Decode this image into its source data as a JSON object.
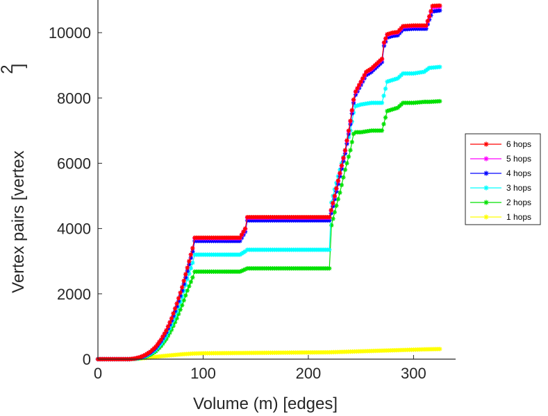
{
  "chart_data": {
    "type": "line",
    "title": "",
    "xlabel": "Volume (m) [edges]",
    "ylabel": "Vertex pairs [vertex",
    "ylabel_superscript": "2",
    "ylabel_tail": "]",
    "xlim": [
      0,
      340
    ],
    "ylim": [
      0,
      11000
    ],
    "xticks": [
      0,
      100,
      200,
      300
    ],
    "yticks": [
      0,
      2000,
      4000,
      6000,
      8000,
      10000
    ],
    "grid": false,
    "legend_position": "right",
    "marker": "asterisk",
    "series": [
      {
        "name": "6 hops",
        "color": "#ff0000",
        "points": [
          [
            0,
            0
          ],
          [
            30,
            0
          ],
          [
            35,
            20
          ],
          [
            40,
            60
          ],
          [
            45,
            130
          ],
          [
            50,
            230
          ],
          [
            55,
            380
          ],
          [
            60,
            600
          ],
          [
            65,
            880
          ],
          [
            70,
            1250
          ],
          [
            75,
            1700
          ],
          [
            80,
            2200
          ],
          [
            85,
            2800
          ],
          [
            90,
            3400
          ],
          [
            92,
            3720
          ],
          [
            100,
            3720
          ],
          [
            120,
            3720
          ],
          [
            135,
            3720
          ],
          [
            140,
            4000
          ],
          [
            142,
            4350
          ],
          [
            160,
            4350
          ],
          [
            180,
            4350
          ],
          [
            200,
            4350
          ],
          [
            220,
            4350
          ],
          [
            225,
            5000
          ],
          [
            230,
            5700
          ],
          [
            235,
            6400
          ],
          [
            240,
            7300
          ],
          [
            243,
            7950
          ],
          [
            245,
            8200
          ],
          [
            250,
            8500
          ],
          [
            255,
            8800
          ],
          [
            260,
            8900
          ],
          [
            265,
            9050
          ],
          [
            270,
            9200
          ],
          [
            272,
            9700
          ],
          [
            275,
            9950
          ],
          [
            280,
            10000
          ],
          [
            285,
            10020
          ],
          [
            290,
            10200
          ],
          [
            300,
            10220
          ],
          [
            312,
            10220
          ],
          [
            315,
            10500
          ],
          [
            318,
            10820
          ],
          [
            325,
            10830
          ]
        ]
      },
      {
        "name": "5 hops",
        "color": "#ff00ff",
        "points": [
          [
            0,
            0
          ],
          [
            30,
            0
          ],
          [
            35,
            20
          ],
          [
            40,
            60
          ],
          [
            45,
            130
          ],
          [
            50,
            230
          ],
          [
            55,
            380
          ],
          [
            60,
            600
          ],
          [
            65,
            880
          ],
          [
            70,
            1250
          ],
          [
            75,
            1700
          ],
          [
            80,
            2200
          ],
          [
            85,
            2800
          ],
          [
            90,
            3400
          ],
          [
            92,
            3700
          ],
          [
            100,
            3700
          ],
          [
            120,
            3700
          ],
          [
            135,
            3700
          ],
          [
            140,
            3980
          ],
          [
            142,
            4330
          ],
          [
            160,
            4330
          ],
          [
            180,
            4330
          ],
          [
            200,
            4330
          ],
          [
            220,
            4330
          ],
          [
            225,
            4980
          ],
          [
            230,
            5680
          ],
          [
            235,
            6380
          ],
          [
            240,
            7280
          ],
          [
            243,
            7930
          ],
          [
            245,
            8180
          ],
          [
            250,
            8480
          ],
          [
            255,
            8780
          ],
          [
            260,
            8880
          ],
          [
            265,
            9030
          ],
          [
            270,
            9180
          ],
          [
            272,
            9680
          ],
          [
            275,
            9930
          ],
          [
            280,
            9980
          ],
          [
            285,
            10000
          ],
          [
            290,
            10180
          ],
          [
            300,
            10200
          ],
          [
            312,
            10200
          ],
          [
            315,
            10480
          ],
          [
            318,
            10780
          ],
          [
            325,
            10790
          ]
        ]
      },
      {
        "name": "4 hops",
        "color": "#0000ff",
        "points": [
          [
            0,
            0
          ],
          [
            30,
            0
          ],
          [
            35,
            15
          ],
          [
            40,
            50
          ],
          [
            45,
            110
          ],
          [
            50,
            200
          ],
          [
            55,
            340
          ],
          [
            60,
            550
          ],
          [
            65,
            820
          ],
          [
            70,
            1180
          ],
          [
            75,
            1620
          ],
          [
            80,
            2100
          ],
          [
            85,
            2700
          ],
          [
            90,
            3300
          ],
          [
            92,
            3620
          ],
          [
            100,
            3620
          ],
          [
            120,
            3620
          ],
          [
            135,
            3620
          ],
          [
            140,
            3900
          ],
          [
            142,
            4250
          ],
          [
            160,
            4250
          ],
          [
            180,
            4250
          ],
          [
            200,
            4250
          ],
          [
            220,
            4250
          ],
          [
            225,
            4900
          ],
          [
            230,
            5600
          ],
          [
            235,
            6300
          ],
          [
            240,
            7200
          ],
          [
            243,
            7850
          ],
          [
            245,
            8100
          ],
          [
            250,
            8400
          ],
          [
            255,
            8700
          ],
          [
            260,
            8800
          ],
          [
            265,
            8950
          ],
          [
            270,
            9100
          ],
          [
            272,
            9600
          ],
          [
            275,
            9850
          ],
          [
            280,
            9900
          ],
          [
            285,
            9920
          ],
          [
            290,
            10100
          ],
          [
            300,
            10120
          ],
          [
            312,
            10120
          ],
          [
            315,
            10400
          ],
          [
            318,
            10650
          ],
          [
            325,
            10680
          ]
        ]
      },
      {
        "name": "3 hops",
        "color": "#00ffff",
        "points": [
          [
            0,
            0
          ],
          [
            30,
            0
          ],
          [
            35,
            10
          ],
          [
            40,
            40
          ],
          [
            45,
            90
          ],
          [
            50,
            170
          ],
          [
            55,
            290
          ],
          [
            60,
            470
          ],
          [
            65,
            720
          ],
          [
            70,
            1050
          ],
          [
            75,
            1450
          ],
          [
            80,
            1900
          ],
          [
            85,
            2450
          ],
          [
            90,
            2950
          ],
          [
            92,
            3200
          ],
          [
            100,
            3200
          ],
          [
            120,
            3200
          ],
          [
            135,
            3200
          ],
          [
            140,
            3300
          ],
          [
            142,
            3350
          ],
          [
            160,
            3350
          ],
          [
            180,
            3350
          ],
          [
            200,
            3350
          ],
          [
            220,
            3350
          ],
          [
            222,
            4800
          ],
          [
            225,
            5200
          ],
          [
            230,
            5800
          ],
          [
            235,
            6400
          ],
          [
            240,
            7000
          ],
          [
            243,
            7550
          ],
          [
            245,
            7750
          ],
          [
            250,
            7800
          ],
          [
            260,
            7850
          ],
          [
            270,
            7850
          ],
          [
            275,
            8500
          ],
          [
            280,
            8550
          ],
          [
            285,
            8600
          ],
          [
            290,
            8750
          ],
          [
            300,
            8750
          ],
          [
            310,
            8800
          ],
          [
            315,
            8920
          ],
          [
            325,
            8950
          ]
        ]
      },
      {
        "name": "2 hops",
        "color": "#00e000",
        "points": [
          [
            0,
            0
          ],
          [
            30,
            0
          ],
          [
            35,
            8
          ],
          [
            40,
            30
          ],
          [
            45,
            70
          ],
          [
            50,
            140
          ],
          [
            55,
            240
          ],
          [
            60,
            400
          ],
          [
            65,
            620
          ],
          [
            70,
            900
          ],
          [
            75,
            1250
          ],
          [
            80,
            1650
          ],
          [
            85,
            2100
          ],
          [
            90,
            2500
          ],
          [
            92,
            2680
          ],
          [
            100,
            2680
          ],
          [
            120,
            2680
          ],
          [
            135,
            2680
          ],
          [
            140,
            2750
          ],
          [
            142,
            2780
          ],
          [
            160,
            2780
          ],
          [
            180,
            2780
          ],
          [
            200,
            2780
          ],
          [
            220,
            2780
          ],
          [
            222,
            4100
          ],
          [
            225,
            4500
          ],
          [
            230,
            5100
          ],
          [
            235,
            5800
          ],
          [
            240,
            6400
          ],
          [
            243,
            6900
          ],
          [
            245,
            6950
          ],
          [
            250,
            6950
          ],
          [
            260,
            7000
          ],
          [
            270,
            7000
          ],
          [
            275,
            7600
          ],
          [
            280,
            7650
          ],
          [
            285,
            7700
          ],
          [
            290,
            7850
          ],
          [
            300,
            7850
          ],
          [
            310,
            7880
          ],
          [
            315,
            7880
          ],
          [
            325,
            7900
          ]
        ]
      },
      {
        "name": "1 hops",
        "color": "#ffff00",
        "points": [
          [
            0,
            0
          ],
          [
            30,
            0
          ],
          [
            40,
            20
          ],
          [
            50,
            50
          ],
          [
            60,
            90
          ],
          [
            70,
            120
          ],
          [
            80,
            150
          ],
          [
            90,
            170
          ],
          [
            100,
            180
          ],
          [
            120,
            185
          ],
          [
            140,
            190
          ],
          [
            160,
            195
          ],
          [
            180,
            200
          ],
          [
            200,
            205
          ],
          [
            220,
            210
          ],
          [
            240,
            230
          ],
          [
            260,
            250
          ],
          [
            280,
            270
          ],
          [
            300,
            290
          ],
          [
            310,
            300
          ],
          [
            325,
            310
          ]
        ]
      }
    ]
  }
}
